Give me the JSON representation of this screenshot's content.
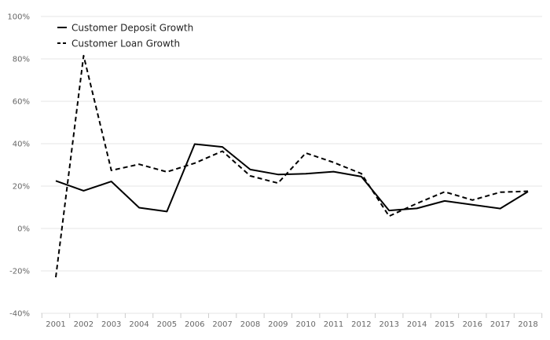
{
  "chart_data": {
    "type": "line",
    "categories": [
      "2001",
      "2002",
      "2003",
      "2004",
      "2005",
      "2006",
      "2007",
      "2008",
      "2009",
      "2010",
      "2011",
      "2012",
      "2013",
      "2014",
      "2015",
      "2016",
      "2017",
      "2018"
    ],
    "series": [
      {
        "name": "Customer Deposit Growth",
        "dash": "solid",
        "color": "#000000",
        "values": [
          22.5,
          17.8,
          22.2,
          9.8,
          8.0,
          39.8,
          38.5,
          27.8,
          25.5,
          25.8,
          26.8,
          24.5,
          8.5,
          9.5,
          13.0,
          11.2,
          9.4,
          17.4
        ]
      },
      {
        "name": "Customer Loan Growth",
        "dash": "dashed",
        "color": "#000000",
        "values": [
          -23.0,
          81.5,
          27.4,
          30.3,
          26.7,
          30.8,
          36.5,
          24.8,
          21.4,
          35.6,
          31.2,
          25.9,
          5.8,
          11.8,
          17.3,
          13.4,
          17.1,
          17.6
        ]
      }
    ],
    "y_ticks": [
      "100%",
      "80%",
      "60%",
      "40%",
      "20%",
      "0%",
      "-20%",
      "-40%"
    ],
    "y_tick_values": [
      100,
      80,
      60,
      40,
      20,
      0,
      -20,
      -40
    ],
    "ylim": [
      -40,
      100
    ],
    "grid": true,
    "legend_position": "top-left",
    "title": "",
    "xlabel": "",
    "ylabel": ""
  }
}
